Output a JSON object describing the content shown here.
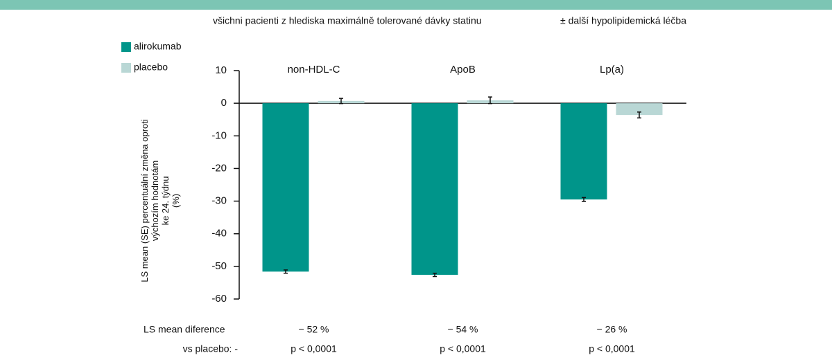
{
  "chart_data": {
    "type": "bar",
    "header": [
      "všichni pacienti z hlediska maximálně tolerované dávky statinu",
      "± další hypolipidemická léčba"
    ],
    "ylabel": [
      "LS mean (SE) percentuální  změna oproti",
      "výchozím hodnotám",
      "ke 24. týdnu",
      "(%)"
    ],
    "categories": [
      "non-HDL-C",
      "ApoB",
      "Lp(a)"
    ],
    "series": [
      {
        "name": "alirokumab",
        "color": "#00958a",
        "values": [
          -51.6,
          -52.6,
          -29.5
        ],
        "errors": [
          0.5,
          0.5,
          0.6
        ]
      },
      {
        "name": "placebo",
        "color": "#b9d7d5",
        "values": [
          0.7,
          0.9,
          -3.6
        ],
        "errors": [
          0.8,
          1.0,
          0.9
        ]
      }
    ],
    "ylim": [
      -60,
      10
    ],
    "yticks": [
      10,
      0,
      -10,
      -20,
      -30,
      -40,
      -50,
      -60
    ],
    "footer_labels": [
      "LS mean diference",
      "vs placebo:  -"
    ],
    "differences": [
      "− 52 %",
      "− 54 %",
      "− 26 %"
    ],
    "p_values": [
      "p < 0,0001",
      "p < 0,0001",
      "p < 0,0001"
    ]
  }
}
